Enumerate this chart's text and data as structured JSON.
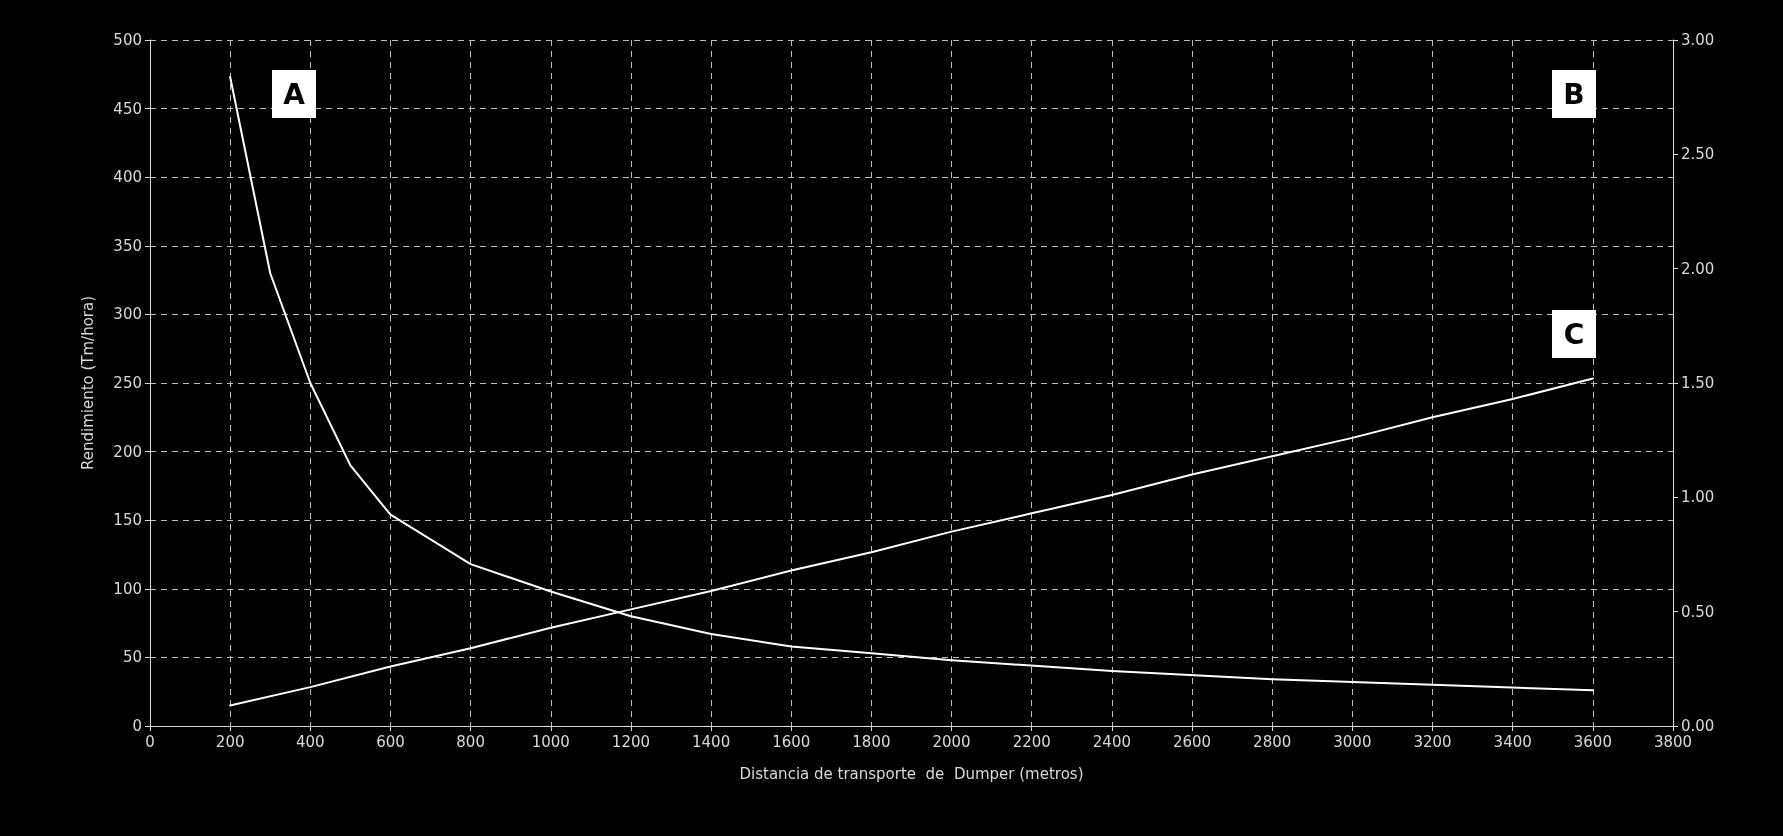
{
  "chart_data": {
    "type": "line",
    "xlabel": "Distancia de transporte  de  Dumper (metros)",
    "ylabel": "Rendimiento (Tm/hora)",
    "xlim": [
      0,
      3800
    ],
    "xticks": [
      0,
      200,
      400,
      600,
      800,
      1000,
      1200,
      1400,
      1600,
      1800,
      2000,
      2200,
      2400,
      2600,
      2800,
      3000,
      3200,
      3400,
      3600,
      3800
    ],
    "ylim": [
      0,
      500
    ],
    "yticks": [
      0,
      50,
      100,
      150,
      200,
      250,
      300,
      350,
      400,
      450,
      500
    ],
    "y2lim": [
      0,
      3
    ],
    "y2ticks": [
      {
        "value": 0,
        "label": "0.00"
      },
      {
        "value": 0.5,
        "label": "0.50"
      },
      {
        "value": 1,
        "label": "1.00"
      },
      {
        "value": 1.5,
        "label": "1.50"
      },
      {
        "value": 2,
        "label": "2.00"
      },
      {
        "value": 2.5,
        "label": "2.50"
      },
      {
        "value": 3,
        "label": "3.00"
      }
    ],
    "grid": true,
    "marker": "none",
    "line_style": "solid",
    "series": [
      {
        "color": "#ffffff",
        "x": [
          200,
          300,
          400,
          500,
          600,
          800,
          1000,
          1200,
          1400,
          1600,
          1800,
          2000,
          2400,
          2800,
          3200,
          3600
        ],
        "values": [
          473,
          330,
          250,
          190,
          154,
          118,
          98,
          80,
          67,
          58,
          53,
          48,
          40,
          34,
          30,
          26
        ]
      },
      {
        "color": "#ffffff",
        "axis": "y2",
        "x": [
          200,
          400,
          600,
          800,
          1000,
          1200,
          1400,
          1600,
          1800,
          2000,
          2200,
          2400,
          2600,
          2800,
          3000,
          3200,
          3400,
          3600
        ],
        "values": [
          0.09,
          0.17,
          0.26,
          0.34,
          0.43,
          0.51,
          0.59,
          0.68,
          0.76,
          0.85,
          0.93,
          1.01,
          1.1,
          1.18,
          1.26,
          1.35,
          1.43,
          1.52
        ]
      }
    ],
    "annotations": [
      "A",
      "B",
      "C"
    ]
  }
}
